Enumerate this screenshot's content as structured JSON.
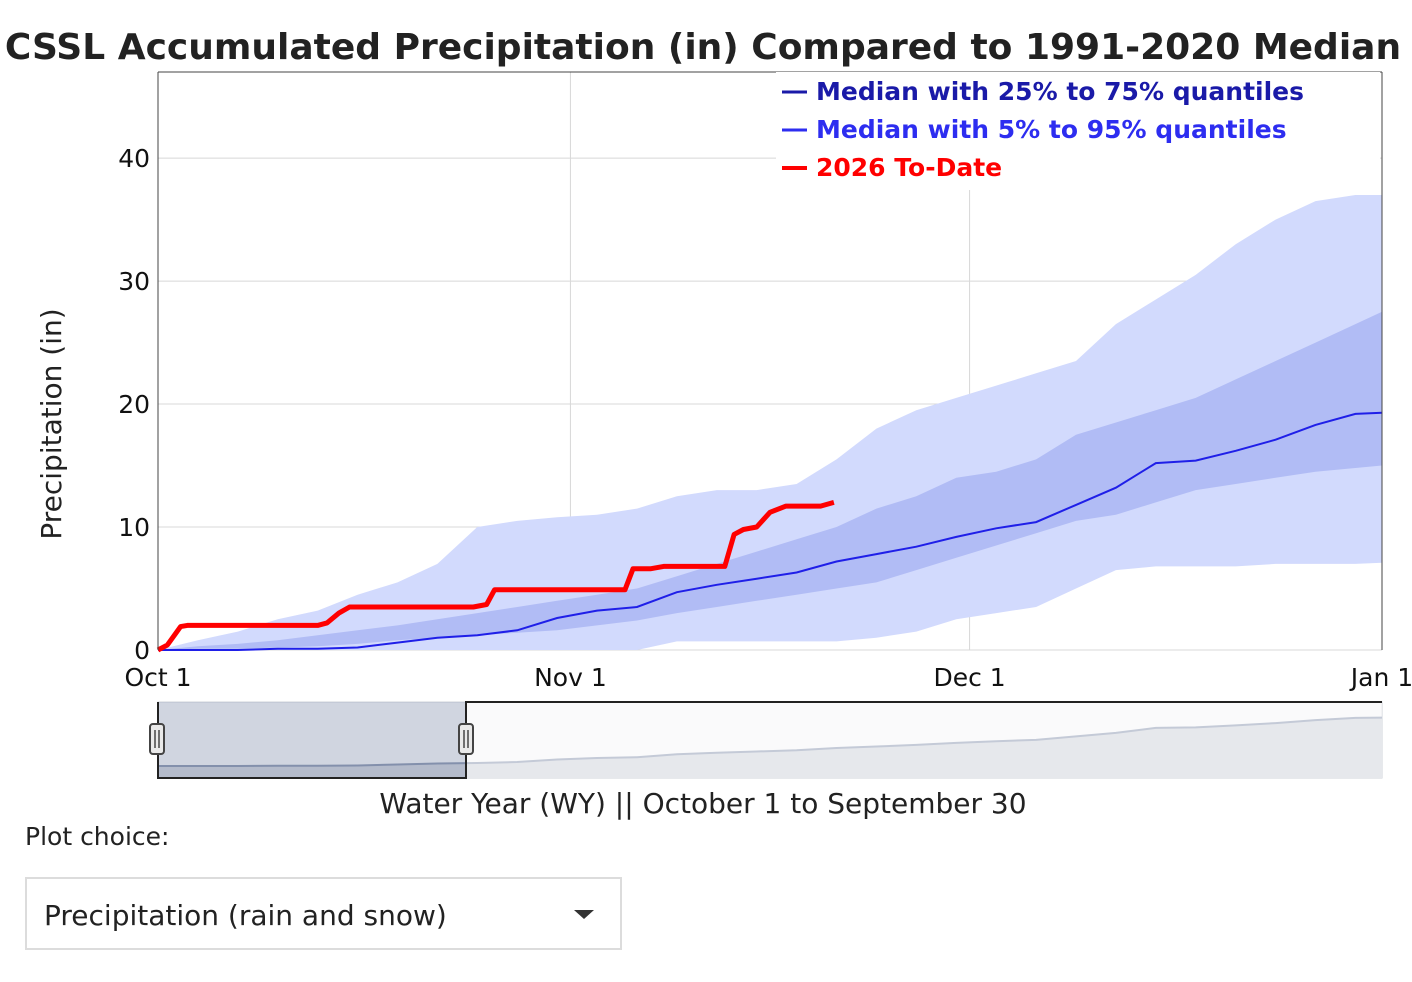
{
  "colors": {
    "band_5_95": "#d2dafd",
    "band_25_75": "#b1bcf5",
    "median": "#1f1fe8",
    "to_date": "#ff0000",
    "legend_25_75": "#1a1aa8",
    "legend_5_95": "#2d2df0",
    "legend_to_date": "#ff0000",
    "grid": "#d8d8d8",
    "range_fill": "#c8ccd6",
    "range_line": "#7d8aa6"
  },
  "chart_data": {
    "type": "area",
    "title": "CSSL Accumulated Precipitation (in) Compared to 1991-2020 Median",
    "ylabel": "Precipitation (in)",
    "xlabel": "Water Year (WY) || October 1 to September 30",
    "ylim": [
      0,
      47
    ],
    "xlim": [
      0,
      92
    ],
    "grid": true,
    "legend_position": "top-right",
    "x_ticks": [
      {
        "day": 0,
        "label": "Oct 1"
      },
      {
        "day": 31,
        "label": "Nov 1"
      },
      {
        "day": 61,
        "label": "Dec 1"
      },
      {
        "day": 92,
        "label": "Jan 1"
      }
    ],
    "y_ticks": [
      0,
      10,
      20,
      30,
      40
    ],
    "legend": [
      {
        "key": "q25_75",
        "label": "Median with 25% to 75% quantiles"
      },
      {
        "key": "q5_95",
        "label": "Median with 5% to 95% quantiles"
      },
      {
        "key": "to_date",
        "label": "2026 To-Date"
      }
    ],
    "x_days": [
      0,
      3,
      6,
      9,
      12,
      15,
      18,
      21,
      24,
      27,
      30,
      33,
      36,
      39,
      42,
      45,
      48,
      51,
      54,
      57,
      60,
      63,
      66,
      69,
      72,
      75,
      78,
      81,
      84,
      87,
      90,
      92
    ],
    "series": [
      {
        "name": "5% quantile",
        "values": [
          0,
          0,
          0,
          0,
          0,
          0,
          0,
          0,
          0,
          0,
          0,
          0,
          0,
          0.7,
          0.7,
          0.7,
          0.7,
          0.7,
          1.0,
          1.5,
          2.5,
          3.0,
          3.5,
          5.0,
          6.5,
          6.8,
          6.8,
          6.8,
          7.0,
          7.0,
          7.0,
          7.1
        ]
      },
      {
        "name": "25% quantile",
        "values": [
          0,
          0.1,
          0.1,
          0.2,
          0.3,
          0.5,
          0.8,
          1.0,
          1.2,
          1.4,
          1.6,
          2.0,
          2.4,
          3.0,
          3.5,
          4.0,
          4.5,
          5.0,
          5.5,
          6.5,
          7.5,
          8.5,
          9.5,
          10.5,
          11.0,
          12.0,
          13.0,
          13.5,
          14.0,
          14.5,
          14.8,
          15.0
        ]
      },
      {
        "name": "Median",
        "values": [
          0,
          0,
          0,
          0.1,
          0.1,
          0.2,
          0.6,
          1.0,
          1.2,
          1.6,
          2.6,
          3.2,
          3.5,
          4.7,
          5.3,
          5.8,
          6.3,
          7.2,
          7.8,
          8.4,
          9.2,
          9.9,
          10.4,
          11.8,
          13.2,
          15.2,
          15.4,
          16.2,
          17.1,
          18.3,
          19.2,
          19.3
        ]
      },
      {
        "name": "75% quantile",
        "values": [
          0,
          0.3,
          0.5,
          0.8,
          1.2,
          1.6,
          2.0,
          2.5,
          3.0,
          3.5,
          4.0,
          4.5,
          5.0,
          6.0,
          7.0,
          8.0,
          9.0,
          10.0,
          11.5,
          12.5,
          14.0,
          14.5,
          15.5,
          17.5,
          18.5,
          19.5,
          20.5,
          22.0,
          23.5,
          25.0,
          26.5,
          27.5
        ]
      },
      {
        "name": "95% quantile",
        "values": [
          0,
          0.8,
          1.5,
          2.5,
          3.2,
          4.5,
          5.5,
          7.0,
          10.0,
          10.5,
          10.8,
          11.0,
          11.5,
          12.5,
          13.0,
          13.0,
          13.5,
          15.5,
          18.0,
          19.5,
          20.5,
          21.5,
          22.5,
          23.5,
          26.5,
          28.5,
          30.5,
          33.0,
          35.0,
          36.5,
          37.0,
          37.0
        ]
      },
      {
        "name": "2026 To-Date",
        "days": [
          0,
          0.7,
          1.7,
          2.2,
          12.0,
          12.7,
          13.6,
          14.4,
          23.7,
          24.7,
          25.3,
          35.1,
          35.7,
          37.0,
          38.0,
          38.7,
          42.6,
          43.3,
          44.0,
          45.0,
          46.0,
          47.2,
          48.0,
          49.8,
          50.8
        ],
        "values": [
          0,
          0.4,
          1.9,
          2.0,
          2.0,
          2.2,
          3.0,
          3.5,
          3.5,
          3.7,
          4.9,
          4.9,
          6.6,
          6.6,
          6.8,
          6.8,
          6.8,
          9.4,
          9.8,
          10.0,
          11.2,
          11.7,
          11.7,
          11.7,
          12.0
        ]
      }
    ]
  },
  "controls": {
    "plot_choice_label": "Plot choice:",
    "plot_choice_value": "Precipitation (rain and snow)"
  }
}
